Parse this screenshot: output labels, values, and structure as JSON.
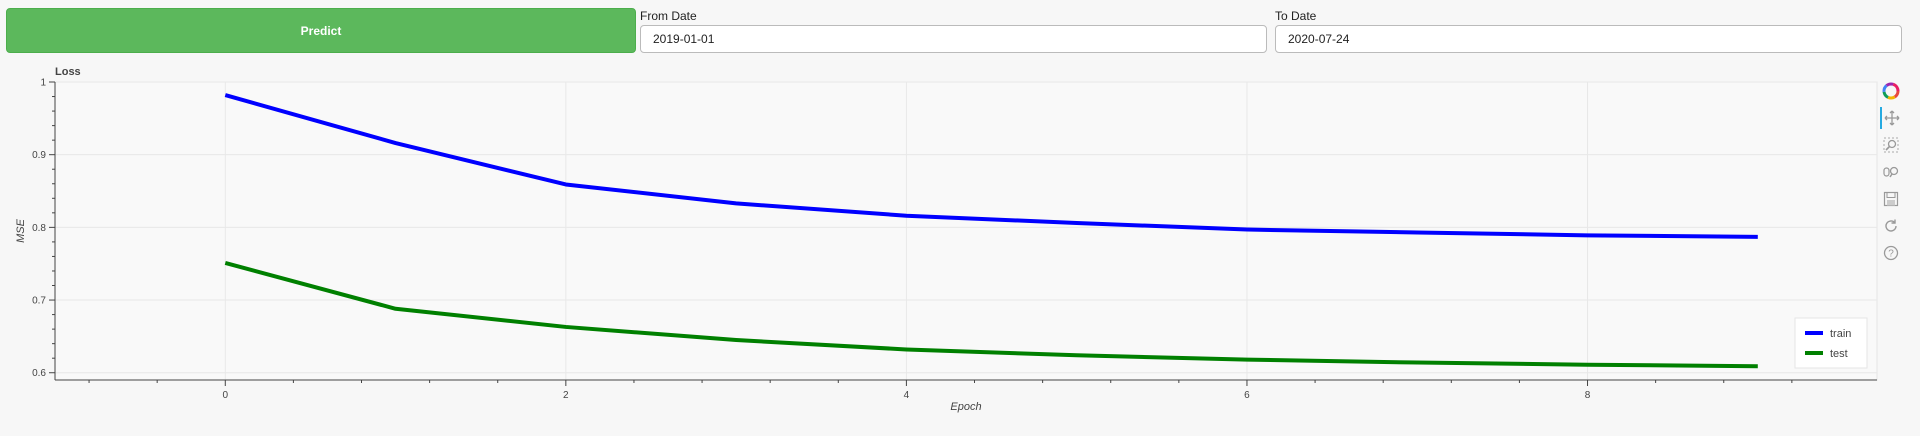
{
  "controls": {
    "predict_label": "Predict",
    "from_label": "From Date",
    "from_value": "2019-01-01",
    "to_label": "To Date",
    "to_value": "2020-07-24"
  },
  "toolbar": {
    "tools": [
      "bokeh-logo-icon",
      "pan-icon",
      "box-zoom-icon",
      "wheel-zoom-icon",
      "save-icon",
      "reset-icon",
      "help-icon"
    ],
    "accent": "#26aae1"
  },
  "chart_data": {
    "type": "line",
    "title": "Loss",
    "xlabel": "Epoch",
    "ylabel": "MSE",
    "xlim": [
      -1,
      9.7
    ],
    "ylim": [
      0.59,
      1.0
    ],
    "xticks": [
      0,
      2,
      4,
      6,
      8
    ],
    "yticks": [
      0.6,
      0.7,
      0.8,
      0.9,
      1
    ],
    "ytick_labels": [
      "0.6",
      "0.7",
      "0.8",
      "0.9",
      "1"
    ],
    "grid": true,
    "legend": "bottom-right",
    "x": [
      0,
      1,
      2,
      3,
      4,
      5,
      6,
      7,
      8,
      9
    ],
    "series": [
      {
        "name": "train",
        "color": "#0000ff",
        "values": [
          0.982,
          0.916,
          0.859,
          0.833,
          0.816,
          0.806,
          0.797,
          0.793,
          0.789,
          0.787
        ]
      },
      {
        "name": "test",
        "color": "#008000",
        "values": [
          0.751,
          0.688,
          0.663,
          0.645,
          0.632,
          0.624,
          0.618,
          0.614,
          0.611,
          0.609
        ]
      }
    ]
  }
}
